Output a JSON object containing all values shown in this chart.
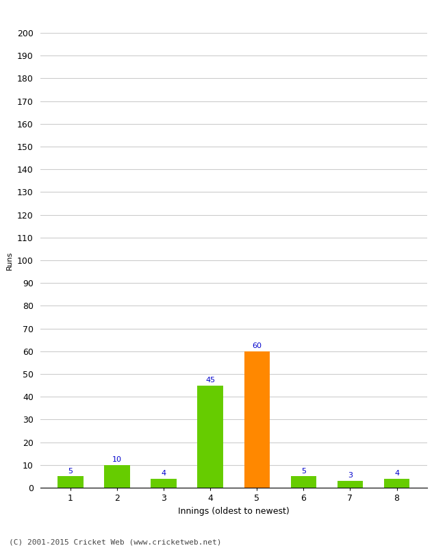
{
  "categories": [
    "1",
    "2",
    "3",
    "4",
    "5",
    "6",
    "7",
    "8"
  ],
  "values": [
    5,
    10,
    4,
    45,
    60,
    5,
    3,
    4
  ],
  "bar_colors": [
    "#66cc00",
    "#66cc00",
    "#66cc00",
    "#66cc00",
    "#ff8800",
    "#66cc00",
    "#66cc00",
    "#66cc00"
  ],
  "label_color": "#0000cc",
  "xlabel": "Innings (oldest to newest)",
  "ylabel": "Runs",
  "ylim": [
    0,
    200
  ],
  "yticks": [
    0,
    10,
    20,
    30,
    40,
    50,
    60,
    70,
    80,
    90,
    100,
    110,
    120,
    130,
    140,
    150,
    160,
    170,
    180,
    190,
    200
  ],
  "background_color": "#ffffff",
  "grid_color": "#cccccc",
  "footer": "(C) 2001-2015 Cricket Web (www.cricketweb.net)",
  "bar_width": 0.55
}
